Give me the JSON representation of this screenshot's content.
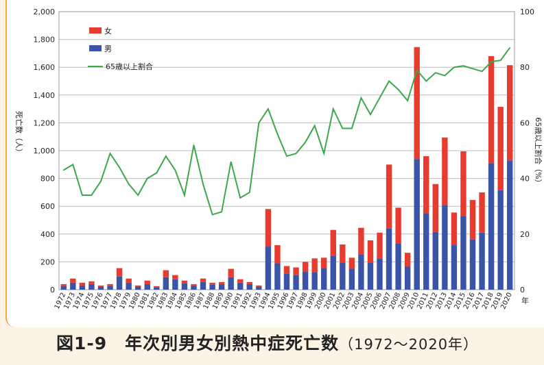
{
  "caption": {
    "title": "図1-9　年次別男女別熱中症死亡数",
    "range": "（1972〜2020年）"
  },
  "chart_data": {
    "type": "bar",
    "stacked": true,
    "title": "図1-9　年次別男女別熱中症死亡数（1972〜2020年）",
    "ylabel": "死亡数（人）",
    "y2label": "65歳以上割合（%）",
    "xunit": "年",
    "ylim": [
      0,
      2000
    ],
    "y2lim": [
      0,
      100
    ],
    "yticks": [
      "0",
      "200",
      "400",
      "600",
      "800",
      "1,000",
      "1,200",
      "1,400",
      "1,600",
      "1,800",
      "2,000"
    ],
    "y2ticks": [
      "0",
      "20",
      "40",
      "60",
      "80",
      "100"
    ],
    "grid": true,
    "legend_position": "top-left",
    "categories": [
      "1972",
      "1973",
      "1974",
      "1975",
      "1976",
      "1977",
      "1978",
      "1979",
      "1980",
      "1981",
      "1982",
      "1983",
      "1984",
      "1985",
      "1986",
      "1987",
      "1988",
      "1989",
      "1990",
      "1991",
      "1992",
      "1993",
      "1994",
      "1995",
      "1996",
      "1997",
      "1998",
      "1999",
      "2000",
      "2001",
      "2002",
      "2003",
      "2004",
      "2005",
      "2006",
      "2007",
      "2008",
      "2009",
      "2010",
      "2011",
      "2012",
      "2013",
      "2014",
      "2015",
      "2016",
      "2017",
      "2018",
      "2019",
      "2020"
    ],
    "series": [
      {
        "name": "男",
        "color": "#3a55a8",
        "axis": "left",
        "values": [
          25,
          50,
          30,
          40,
          20,
          25,
          95,
          50,
          20,
          40,
          15,
          90,
          75,
          45,
          30,
          55,
          35,
          40,
          90,
          50,
          40,
          20,
          310,
          190,
          115,
          105,
          130,
          125,
          155,
          245,
          195,
          150,
          255,
          195,
          225,
          440,
          330,
          165,
          940,
          550,
          415,
          610,
          320,
          530,
          360,
          410,
          910,
          715,
          930
        ]
      },
      {
        "name": "女",
        "color": "#e83b30",
        "axis": "left",
        "values": [
          15,
          30,
          20,
          20,
          10,
          15,
          60,
          30,
          10,
          25,
          10,
          50,
          30,
          20,
          10,
          25,
          15,
          15,
          60,
          25,
          15,
          10,
          270,
          130,
          55,
          55,
          70,
          100,
          75,
          185,
          130,
          80,
          190,
          160,
          185,
          460,
          260,
          100,
          805,
          410,
          345,
          485,
          235,
          465,
          285,
          290,
          770,
          600,
          685
        ]
      },
      {
        "name": "65歳以上割合",
        "color": "#3aa84a",
        "axis": "right",
        "type": "line",
        "values": [
          43,
          45,
          34,
          34,
          39,
          49,
          44,
          38,
          34,
          40,
          42,
          48,
          43,
          34,
          52,
          38,
          27,
          28,
          46,
          33,
          35,
          60,
          65,
          56,
          48,
          49,
          53,
          59,
          49,
          65,
          58,
          58,
          69,
          63,
          69,
          75,
          72,
          68,
          79,
          75,
          78,
          77,
          80,
          80.5,
          79.5,
          78.5,
          82,
          82.5,
          87
        ]
      }
    ]
  }
}
